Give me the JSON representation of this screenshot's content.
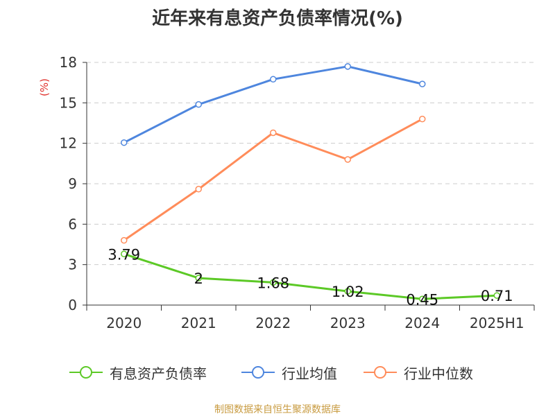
{
  "chart_data": {
    "type": "line",
    "title": "近年来有息资产负债率情况(%)",
    "ylabel": "(%)",
    "categories": [
      "2020",
      "2021",
      "2022",
      "2023",
      "2024",
      "2025H1"
    ],
    "ylim": [
      0,
      18
    ],
    "yticks": [
      0,
      3,
      6,
      9,
      12,
      15,
      18
    ],
    "grid": true,
    "legend_position": "bottom",
    "series": [
      {
        "name": "有息资产负债率",
        "color": "#5cc926",
        "values": [
          3.79,
          2.0,
          1.68,
          1.02,
          0.45,
          0.71
        ],
        "labels": [
          "3.79",
          "2",
          "1.68",
          "1.02",
          "0.45",
          "0.71"
        ]
      },
      {
        "name": "行业均值",
        "color": "#4e86de",
        "values": [
          12.05,
          14.88,
          16.75,
          17.7,
          16.4,
          null
        ]
      },
      {
        "name": "行业中位数",
        "color": "#ff8c5a",
        "values": [
          4.8,
          8.6,
          12.78,
          10.8,
          13.8,
          null
        ]
      }
    ]
  },
  "footer": "制图数据来自恒生聚源数据库"
}
